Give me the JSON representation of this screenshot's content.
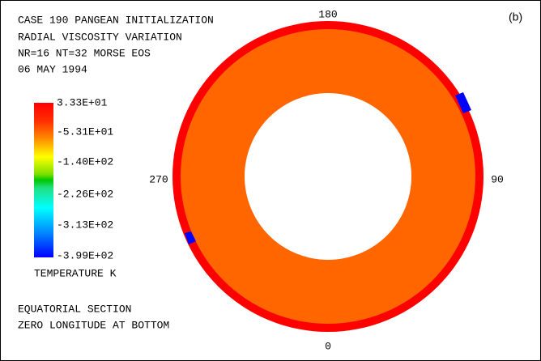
{
  "header": {
    "lines": [
      "CASE 190 PANGEAN INITIALIZATION",
      "RADIAL VISCOSITY VARIATION",
      "NR=16 NT=32  MORSE EOS",
      "06 MAY 1994"
    ]
  },
  "panel_label": "(b)",
  "colorbar": {
    "labels": [
      "3.33E+01",
      "-5.31E+01",
      "-1.40E+02",
      "-2.26E+02",
      "-3.13E+02",
      "-3.99E+02"
    ],
    "title": "TEMPERATURE K"
  },
  "angles": {
    "top": "180",
    "bottom": "0",
    "left": "270",
    "right": "90"
  },
  "footer": {
    "lines": [
      "EQUATORIAL SECTION",
      "ZERO LONGITUDE AT BOTTOM"
    ]
  }
}
